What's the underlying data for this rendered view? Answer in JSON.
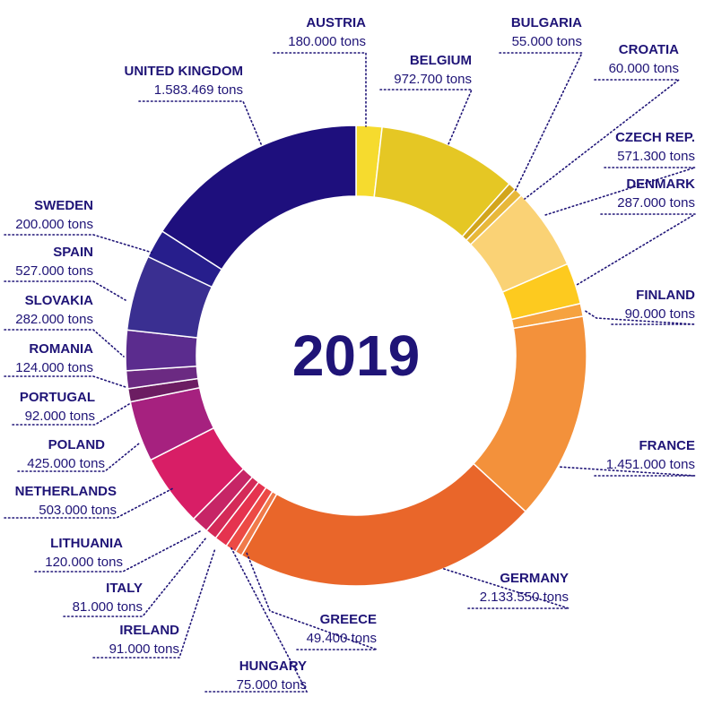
{
  "chart_data": {
    "type": "pie",
    "subtype": "donut",
    "center_label": "2019",
    "unit": "tons",
    "slices": [
      {
        "name": "AUSTRIA",
        "value": 180000,
        "value_label": "180.000 tons",
        "color": "#f6db2e"
      },
      {
        "name": "BELGIUM",
        "value": 972700,
        "value_label": "972.700 tons",
        "color": "#e5c724"
      },
      {
        "name": "BULGARIA",
        "value": 55000,
        "value_label": "55.000 tons",
        "color": "#d2a51c"
      },
      {
        "name": "CROATIA",
        "value": 60000,
        "value_label": "60.000 tons",
        "color": "#e8b83a"
      },
      {
        "name": "CZECH REP.",
        "value": 571300,
        "value_label": "571.300 tons",
        "color": "#fad275"
      },
      {
        "name": "DENMARK",
        "value": 287000,
        "value_label": "287.000 tons",
        "color": "#fdca1f"
      },
      {
        "name": "FINLAND",
        "value": 90000,
        "value_label": "90.000 tons",
        "color": "#f6a23f"
      },
      {
        "name": "FRANCE",
        "value": 1451000,
        "value_label": "1.451.000 tons",
        "color": "#f3913b"
      },
      {
        "name": "GERMANY",
        "value": 2133550,
        "value_label": "2.133.550 tons",
        "color": "#e9662a"
      },
      {
        "name": "GREECE",
        "value": 49400,
        "value_label": "49.400 tons",
        "color": "#f07a4a"
      },
      {
        "name": "HUNGARY",
        "value": 75000,
        "value_label": "75.000 tons",
        "color": "#ec4a45"
      },
      {
        "name": "IRELAND",
        "value": 91000,
        "value_label": "91.000 tons",
        "color": "#e5334f"
      },
      {
        "name": "ITALY",
        "value": 81000,
        "value_label": "81.000 tons",
        "color": "#d42a58"
      },
      {
        "name": "LITHUANIA",
        "value": 120000,
        "value_label": "120.000 tons",
        "color": "#c62566"
      },
      {
        "name": "NETHERLANDS",
        "value": 503000,
        "value_label": "503.000 tons",
        "color": "#d81e66"
      },
      {
        "name": "POLAND",
        "value": 425000,
        "value_label": "425.000 tons",
        "color": "#a6217f"
      },
      {
        "name": "PORTUGAL",
        "value": 92000,
        "value_label": "92.000 tons",
        "color": "#6c1d62"
      },
      {
        "name": "ROMANIA",
        "value": 124000,
        "value_label": "124.000 tons",
        "color": "#6b2a82"
      },
      {
        "name": "SLOVAKIA",
        "value": 282000,
        "value_label": "282.000 tons",
        "color": "#5b2c8e"
      },
      {
        "name": "SPAIN",
        "value": 527000,
        "value_label": "527.000 tons",
        "color": "#3a2f91"
      },
      {
        "name": "SWEDEN",
        "value": 200000,
        "value_label": "200.000 tons",
        "color": "#271e8c"
      },
      {
        "name": "UNITED KINGDOM",
        "value": 1583469,
        "value_label": "1.583.469 tons",
        "color": "#1e0f7d"
      }
    ],
    "text_color": "#1f1477",
    "leader_line_style": "dotted"
  }
}
